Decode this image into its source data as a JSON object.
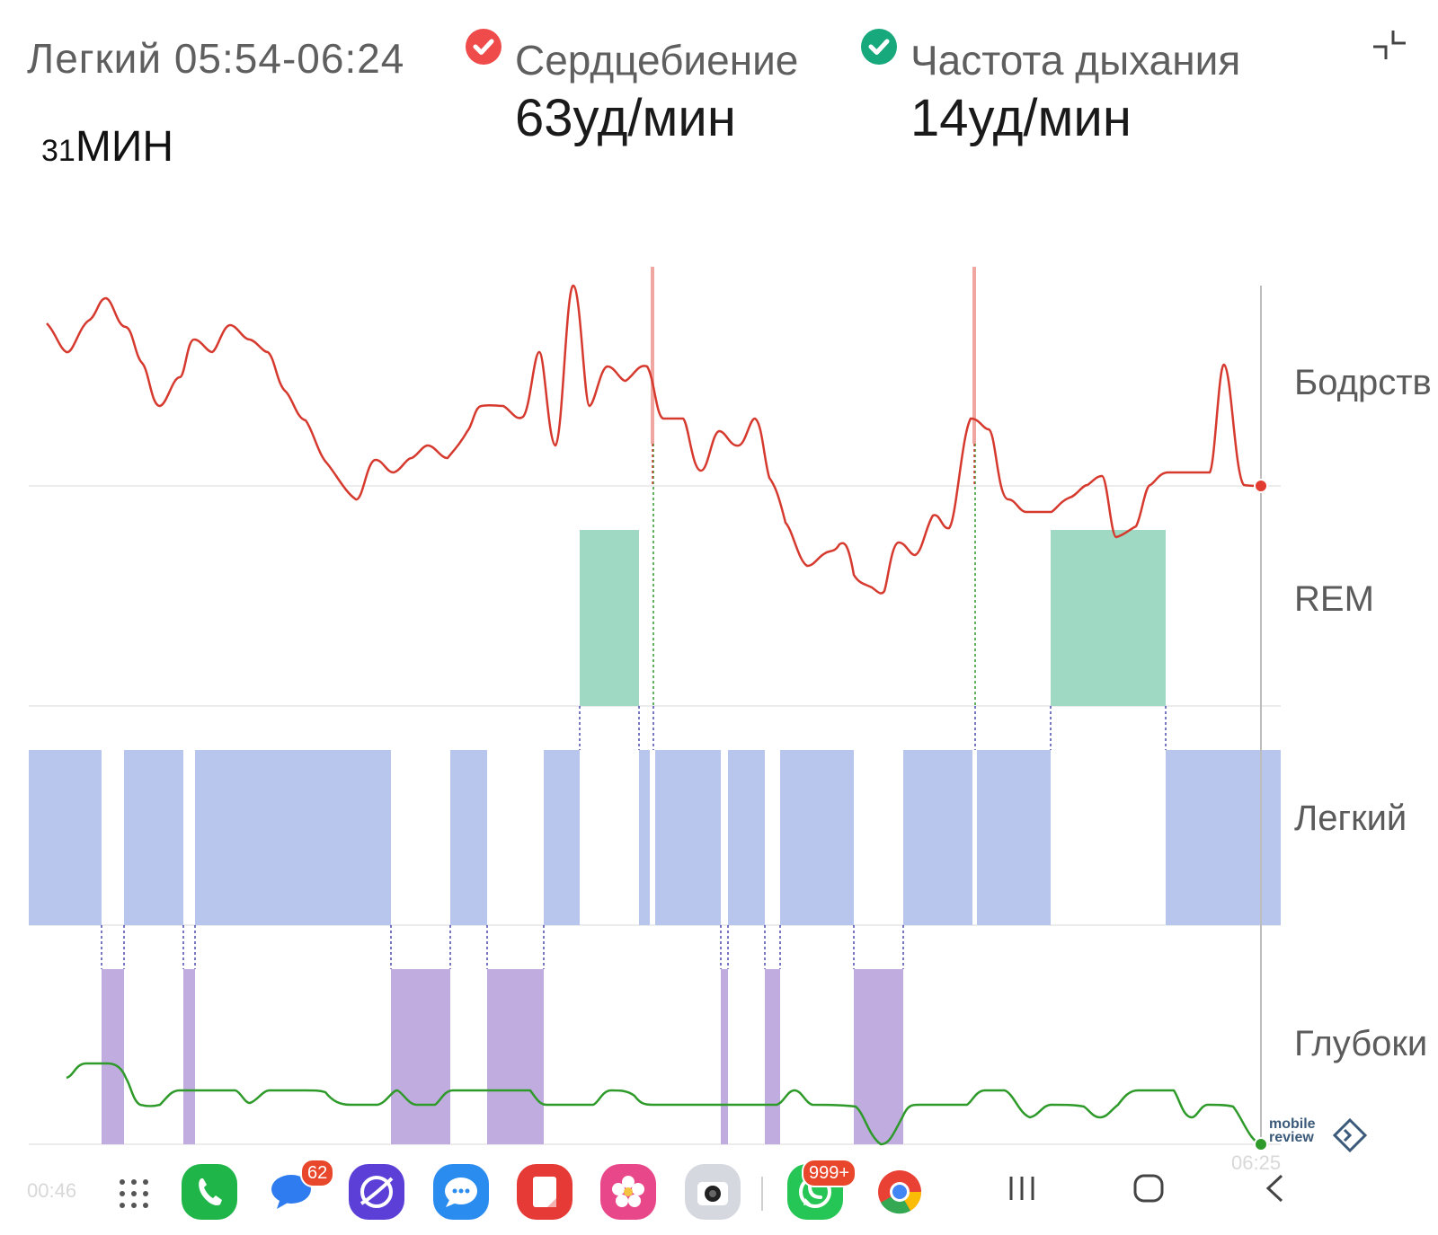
{
  "header": {
    "stage_time": "Легкий 05:54-06:24",
    "duration_number": "31",
    "duration_unit": "МИН",
    "metrics": [
      {
        "label": "Сердцебиение",
        "value": "63уд/мин",
        "badge_color": "#ef4b4b",
        "icon": "check-icon"
      },
      {
        "label": "Частота дыхания",
        "value": "14уд/мин",
        "badge_color": "#17a87b",
        "icon": "check-icon"
      }
    ],
    "collapse_icon": "collapse-icon"
  },
  "chart_data": {
    "type": "line",
    "stage_labels": [
      "Бодрств",
      "REM",
      "Легкий",
      "Глубоки"
    ],
    "x_start_label": "00:46",
    "x_end_label": "06:25",
    "colors": {
      "heart": "#d63a2f",
      "breath": "#2e9a2a",
      "rem": "#9fd9c3",
      "light": "#b8c6ee",
      "deep": "#c0acdf"
    }
  },
  "dock": {
    "apps": [
      {
        "name": "apps-grid-icon"
      },
      {
        "name": "phone-icon",
        "color": "#1fb548"
      },
      {
        "name": "messages-icon",
        "color": "#2f7cf0",
        "badge": "62"
      },
      {
        "name": "internet-icon",
        "color": "#5b3fd6"
      },
      {
        "name": "chat-icon",
        "color": "#2b8cf0"
      },
      {
        "name": "notes-icon",
        "color": "#e53a36"
      },
      {
        "name": "gallery-icon",
        "color": "#e8478a"
      },
      {
        "name": "camera-icon",
        "color": "#c7cbd2"
      },
      {
        "name": "whatsapp-icon",
        "color": "#25c655",
        "badge": "999+"
      },
      {
        "name": "chrome-icon",
        "color": "#e94235"
      }
    ],
    "nav": [
      "recents-icon",
      "home-icon",
      "back-icon"
    ]
  },
  "watermark": {
    "line1": "mobile",
    "line2": "review"
  }
}
